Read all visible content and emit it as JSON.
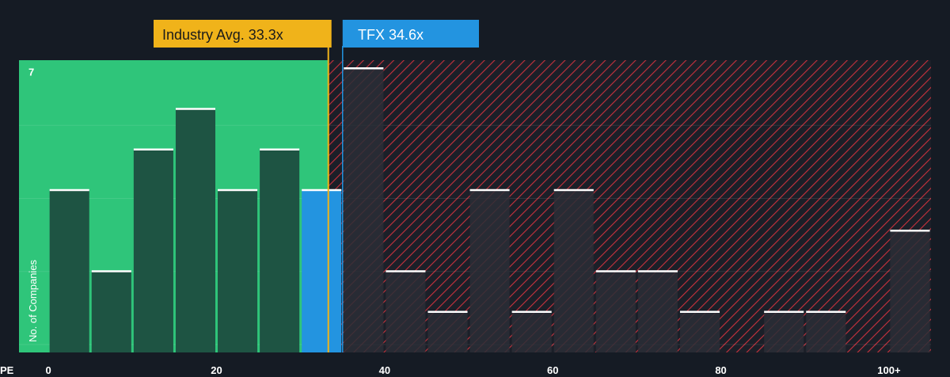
{
  "chart_data": {
    "type": "bar",
    "xlabel": "PE",
    "ylabel": "No. of Companies",
    "x_tick_labels": [
      "0",
      "20",
      "40",
      "60",
      "80",
      "100+"
    ],
    "x_tick_values": [
      0,
      20,
      40,
      60,
      80,
      100
    ],
    "xlim": [
      -3.5,
      105
    ],
    "ylim": [
      0,
      7.2
    ],
    "y_tick_label": "7",
    "y_tick_value": 7,
    "grid": true,
    "bin_width": 5,
    "bins": [
      {
        "start": 0,
        "value": 4
      },
      {
        "start": 5,
        "value": 2
      },
      {
        "start": 10,
        "value": 5
      },
      {
        "start": 15,
        "value": 6
      },
      {
        "start": 20,
        "value": 4
      },
      {
        "start": 25,
        "value": 5
      },
      {
        "start": 30,
        "value": 4
      },
      {
        "start": 35,
        "value": 7
      },
      {
        "start": 40,
        "value": 2
      },
      {
        "start": 45,
        "value": 1
      },
      {
        "start": 50,
        "value": 4
      },
      {
        "start": 55,
        "value": 1
      },
      {
        "start": 60,
        "value": 4
      },
      {
        "start": 65,
        "value": 2
      },
      {
        "start": 70,
        "value": 2
      },
      {
        "start": 75,
        "value": 1
      },
      {
        "start": 80,
        "value": 0
      },
      {
        "start": 85,
        "value": 1
      },
      {
        "start": 90,
        "value": 1
      },
      {
        "start": 100,
        "value": 3
      }
    ],
    "industry_avg": {
      "label": "Industry Avg. 33.3x",
      "value": 33.3
    },
    "company": {
      "label": "TFX 34.6x",
      "value": 34.6
    },
    "colors": {
      "background": "#151b24",
      "fair_zone": "#2fc57a",
      "fair_bar": "#1e5443",
      "highlight_bar": "#2394e0",
      "expensive_bar": "#2a2e36",
      "hatch": "#c8323d",
      "industry_callout": "#f0b31a",
      "company_callout": "#2394e0"
    }
  }
}
